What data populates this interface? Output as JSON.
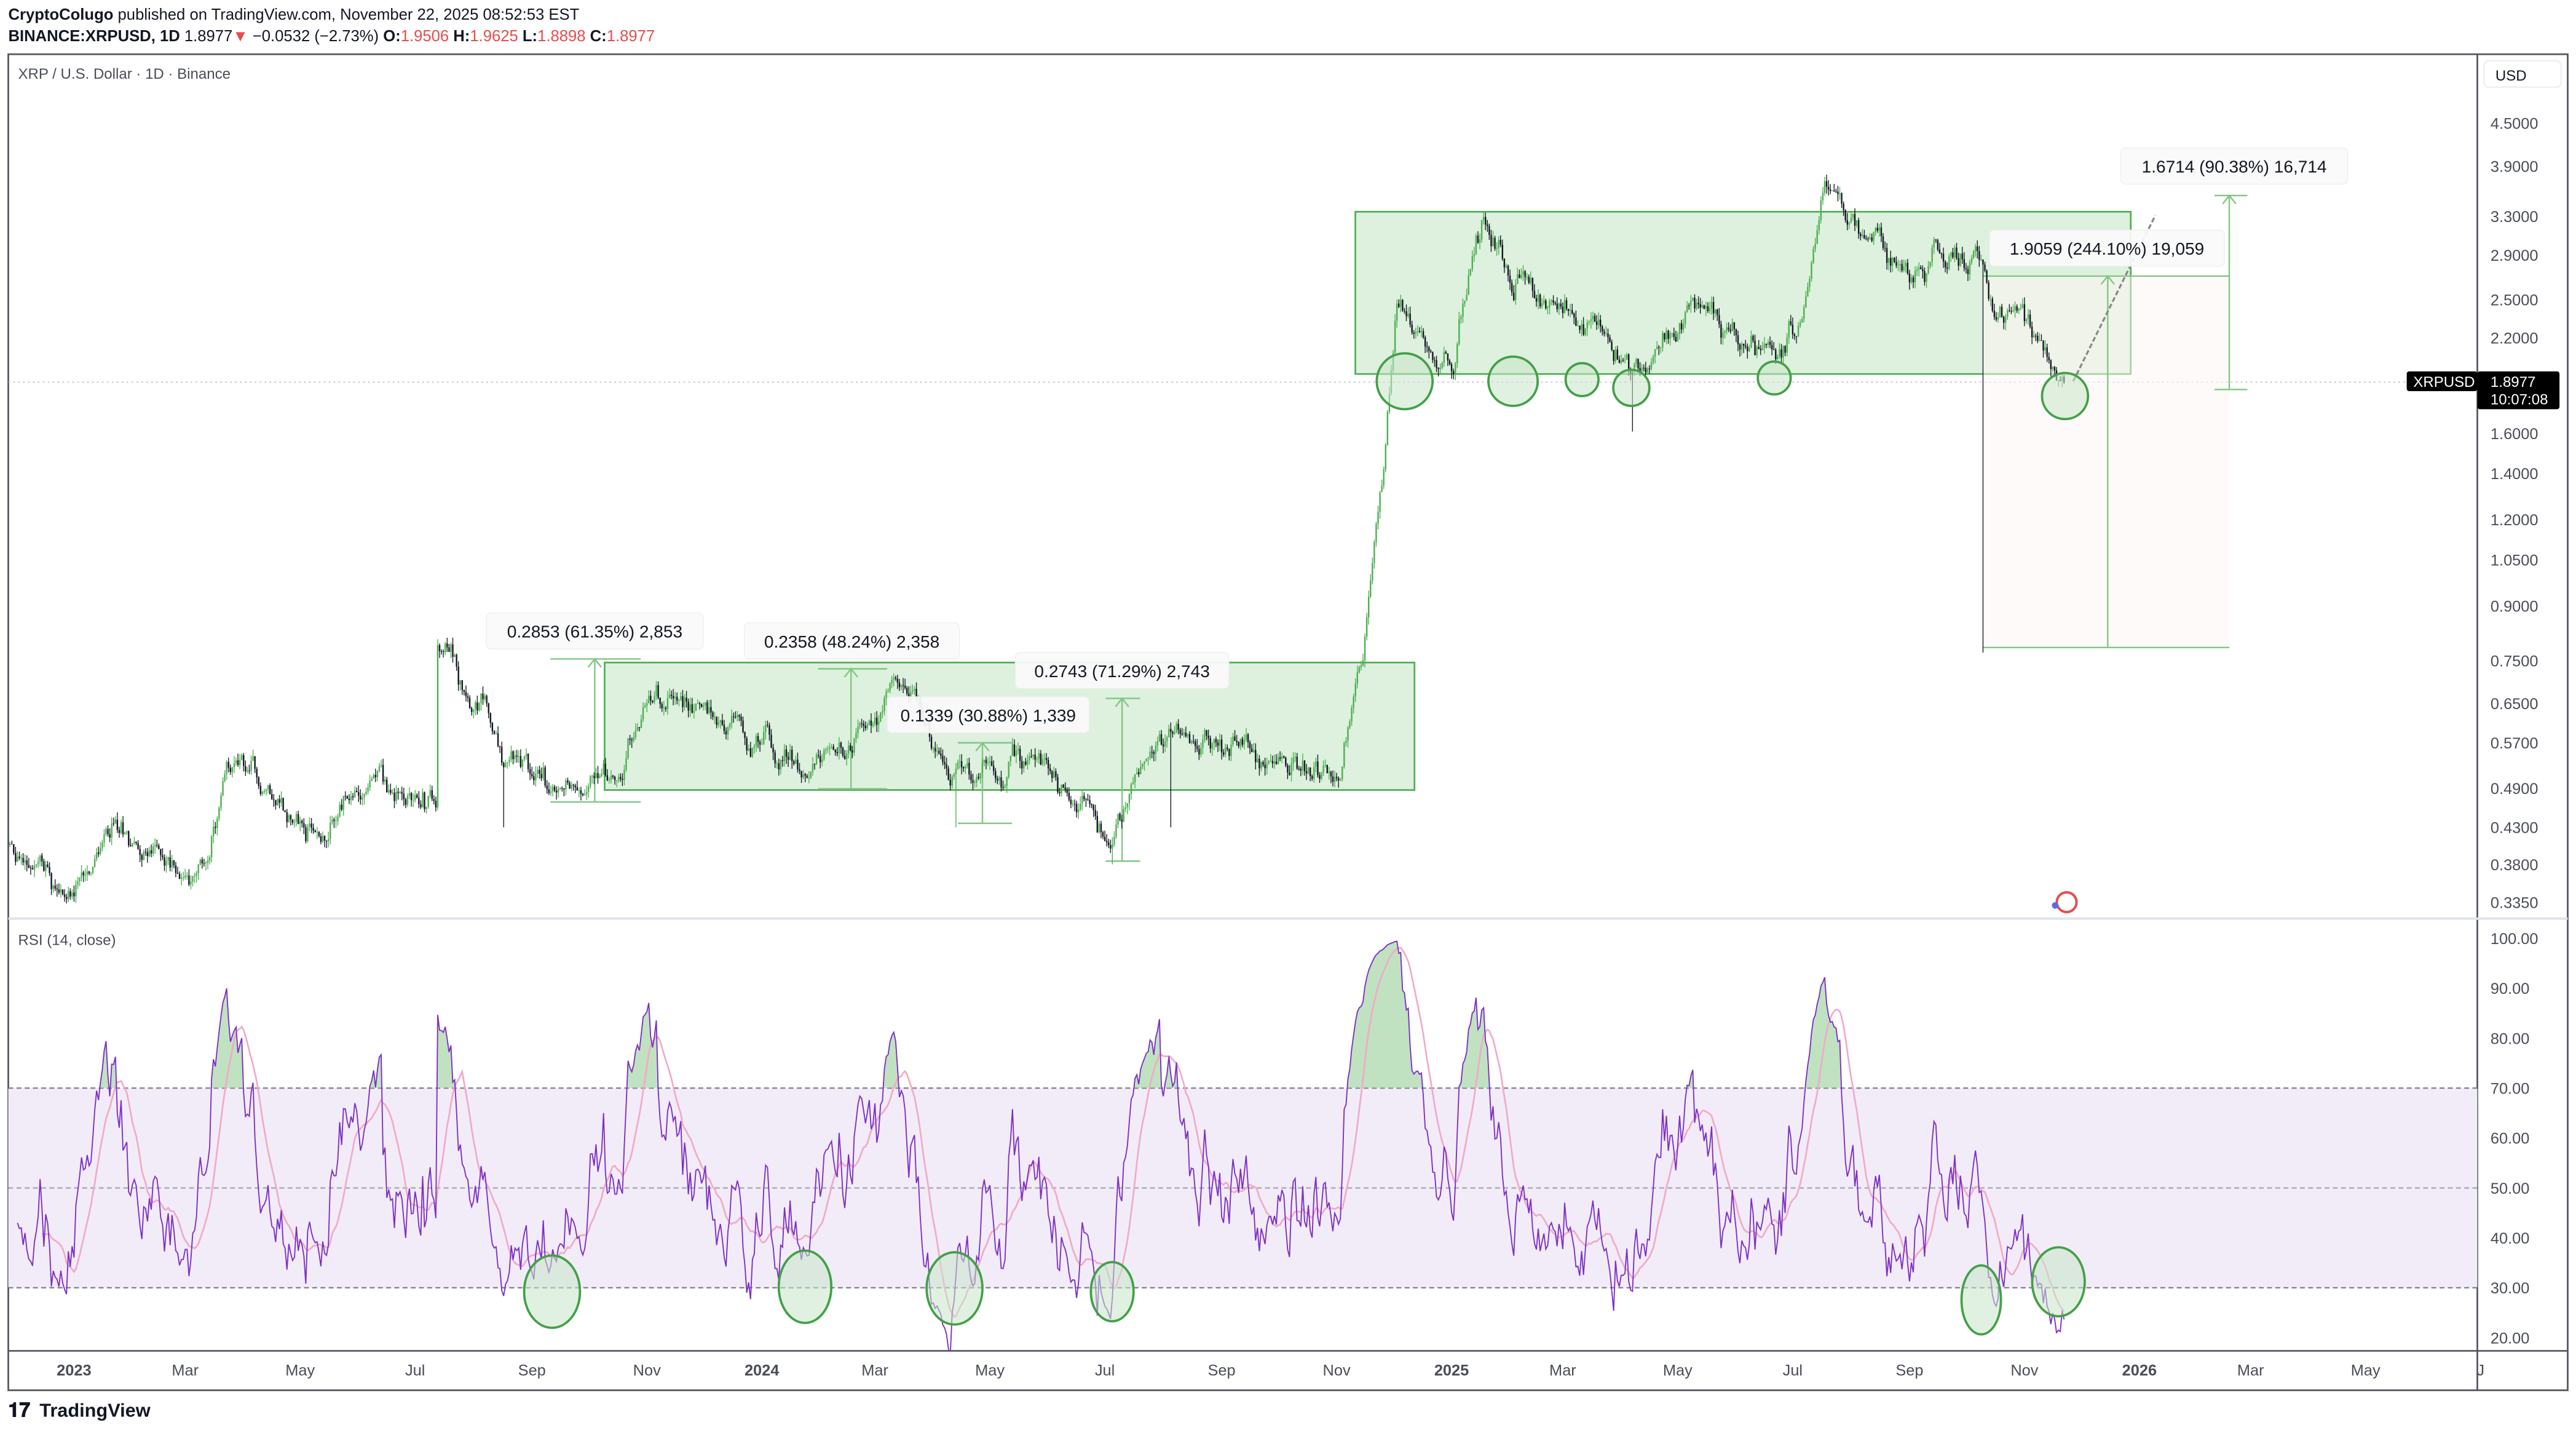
{
  "header": {
    "publisher": "CryptoColugo",
    "published_text": "published on TradingView.com, November 22, 2025 08:52:53 EST",
    "symbol": "BINANCE:XRPUSD, 1D",
    "last": "1.8977",
    "down_arrow": "▼",
    "change": "−0.0532 (−2.73%)",
    "o_label": "O:",
    "o": "1.9506",
    "h_label": "H:",
    "h": "1.9625",
    "l_label": "L:",
    "l": "1.8898",
    "c_label": "C:",
    "c": "1.8977"
  },
  "chart": {
    "title": "XRP / U.S. Dollar · 1D · Binance",
    "currency": "USD",
    "symbol_tag": "XRPUSD",
    "last_price_label": "1.8977",
    "countdown": "10:07:08",
    "rsi_title": "RSI (14, close)",
    "logo": "TradingView",
    "colors": {
      "up": "#4caf50",
      "down": "#131722",
      "rsi": "#7e2fc4",
      "rsi_ma": "#f2a9c8",
      "box": "#4caf50",
      "box_fill": "#dcefdc",
      "rsi_band": "#f1ecf8",
      "down_text": "#e84d4d"
    },
    "measurements": [
      {
        "label": "0.2853 (61.35%) 2,853"
      },
      {
        "label": "0.2358 (48.24%) 2,358"
      },
      {
        "label": "0.1339 (30.88%) 1,339"
      },
      {
        "label": "0.2743 (71.29%) 2,743"
      },
      {
        "label": "1.9059 (244.10%) 19,059"
      },
      {
        "label": "1.6714 (90.38%) 16,714"
      }
    ]
  },
  "chart_data": {
    "type": "candlestick",
    "scale": "log",
    "price_ticks": [
      "4.5000",
      "3.9000",
      "3.3000",
      "2.9000",
      "2.5000",
      "2.2000",
      "1.6000",
      "1.4000",
      "1.2000",
      "1.0500",
      "0.9000",
      "0.7500",
      "0.6500",
      "0.5700",
      "0.4900",
      "0.4300",
      "0.3800",
      "0.3350"
    ],
    "rsi_ticks": [
      "100.00",
      "90.00",
      "80.00",
      "70.00",
      "60.00",
      "50.00",
      "40.00",
      "30.00",
      "20.00"
    ],
    "rsi_levels": [
      70,
      50,
      30
    ],
    "rsi_period": 14,
    "x_ticks": [
      {
        "label": "2023",
        "date": "2023-01-01",
        "bold": true
      },
      {
        "label": "Mar",
        "date": "2023-03-01"
      },
      {
        "label": "May",
        "date": "2023-05-01"
      },
      {
        "label": "Jul",
        "date": "2023-07-01"
      },
      {
        "label": "Sep",
        "date": "2023-09-01"
      },
      {
        "label": "Nov",
        "date": "2023-11-01"
      },
      {
        "label": "2024",
        "date": "2024-01-01",
        "bold": true
      },
      {
        "label": "Mar",
        "date": "2024-03-01"
      },
      {
        "label": "May",
        "date": "2024-05-01"
      },
      {
        "label": "Jul",
        "date": "2024-07-01"
      },
      {
        "label": "Sep",
        "date": "2024-09-01"
      },
      {
        "label": "Nov",
        "date": "2024-11-01"
      },
      {
        "label": "2025",
        "date": "2025-01-01",
        "bold": true
      },
      {
        "label": "Mar",
        "date": "2025-03-01"
      },
      {
        "label": "May",
        "date": "2025-05-01"
      },
      {
        "label": "Jul",
        "date": "2025-07-01"
      },
      {
        "label": "Sep",
        "date": "2025-09-01"
      },
      {
        "label": "Nov",
        "date": "2025-11-01"
      },
      {
        "label": "2026",
        "date": "2026-01-01",
        "bold": true
      },
      {
        "label": "Mar",
        "date": "2026-03-01"
      },
      {
        "label": "May",
        "date": "2026-05-01"
      },
      {
        "label": "J",
        "date": "2026-07-01"
      }
    ],
    "price_path": [
      [
        "2022-11-18",
        0.4
      ],
      [
        "2022-12-15",
        0.37
      ],
      [
        "2023-01-01",
        0.34
      ],
      [
        "2023-01-22",
        0.42
      ],
      [
        "2023-02-15",
        0.39
      ],
      [
        "2023-03-10",
        0.37
      ],
      [
        "2023-03-28",
        0.52
      ],
      [
        "2023-04-18",
        0.47
      ],
      [
        "2023-05-10",
        0.42
      ],
      [
        "2023-06-10",
        0.5
      ],
      [
        "2023-07-01",
        0.47
      ],
      [
        "2023-07-12",
        0.47
      ],
      [
        "2023-07-13",
        0.8
      ],
      [
        "2023-08-05",
        0.65
      ],
      [
        "2023-08-17",
        0.52
      ],
      [
        "2023-09-10",
        0.5
      ],
      [
        "2023-10-15",
        0.5
      ],
      [
        "2023-11-06",
        0.68
      ],
      [
        "2023-12-10",
        0.62
      ],
      [
        "2024-01-05",
        0.57
      ],
      [
        "2024-01-28",
        0.51
      ],
      [
        "2024-03-01",
        0.6
      ],
      [
        "2024-03-11",
        0.69
      ],
      [
        "2024-04-13",
        0.5
      ],
      [
        "2024-05-20",
        0.52
      ],
      [
        "2024-06-20",
        0.48
      ],
      [
        "2024-07-05",
        0.4
      ],
      [
        "2024-07-28",
        0.6
      ],
      [
        "2024-08-28",
        0.58
      ],
      [
        "2024-10-01",
        0.53
      ],
      [
        "2024-11-03",
        0.5
      ],
      [
        "2024-11-15",
        0.75
      ],
      [
        "2024-11-25",
        1.4
      ],
      [
        "2024-12-03",
        2.5
      ],
      [
        "2024-12-20",
        2.2
      ],
      [
        "2025-01-01",
        2.1
      ],
      [
        "2025-01-17",
        3.2
      ],
      [
        "2025-02-03",
        2.7
      ],
      [
        "2025-02-20",
        2.6
      ],
      [
        "2025-03-10",
        2.2
      ],
      [
        "2025-03-22",
        2.45
      ],
      [
        "2025-04-07",
        1.9
      ],
      [
        "2025-04-22",
        2.15
      ],
      [
        "2025-05-14",
        2.4
      ],
      [
        "2025-06-04",
        2.2
      ],
      [
        "2025-06-22",
        2.05
      ],
      [
        "2025-07-05",
        2.3
      ],
      [
        "2025-07-18",
        3.5
      ],
      [
        "2025-08-12",
        3.0
      ],
      [
        "2025-09-03",
        2.85
      ],
      [
        "2025-09-28",
        2.85
      ],
      [
        "2025-10-09",
        2.75
      ],
      [
        "2025-10-17",
        2.4
      ],
      [
        "2025-11-03",
        2.3
      ],
      [
        "2025-11-22",
        1.8977
      ]
    ],
    "wicks": [
      [
        "2023-08-17",
        0.43
      ],
      [
        "2024-04-13",
        0.43
      ],
      [
        "2024-07-05",
        0.38
      ],
      [
        "2024-08-05",
        0.43
      ],
      [
        "2025-04-07",
        1.61
      ],
      [
        "2025-10-10",
        0.77
      ]
    ]
  }
}
